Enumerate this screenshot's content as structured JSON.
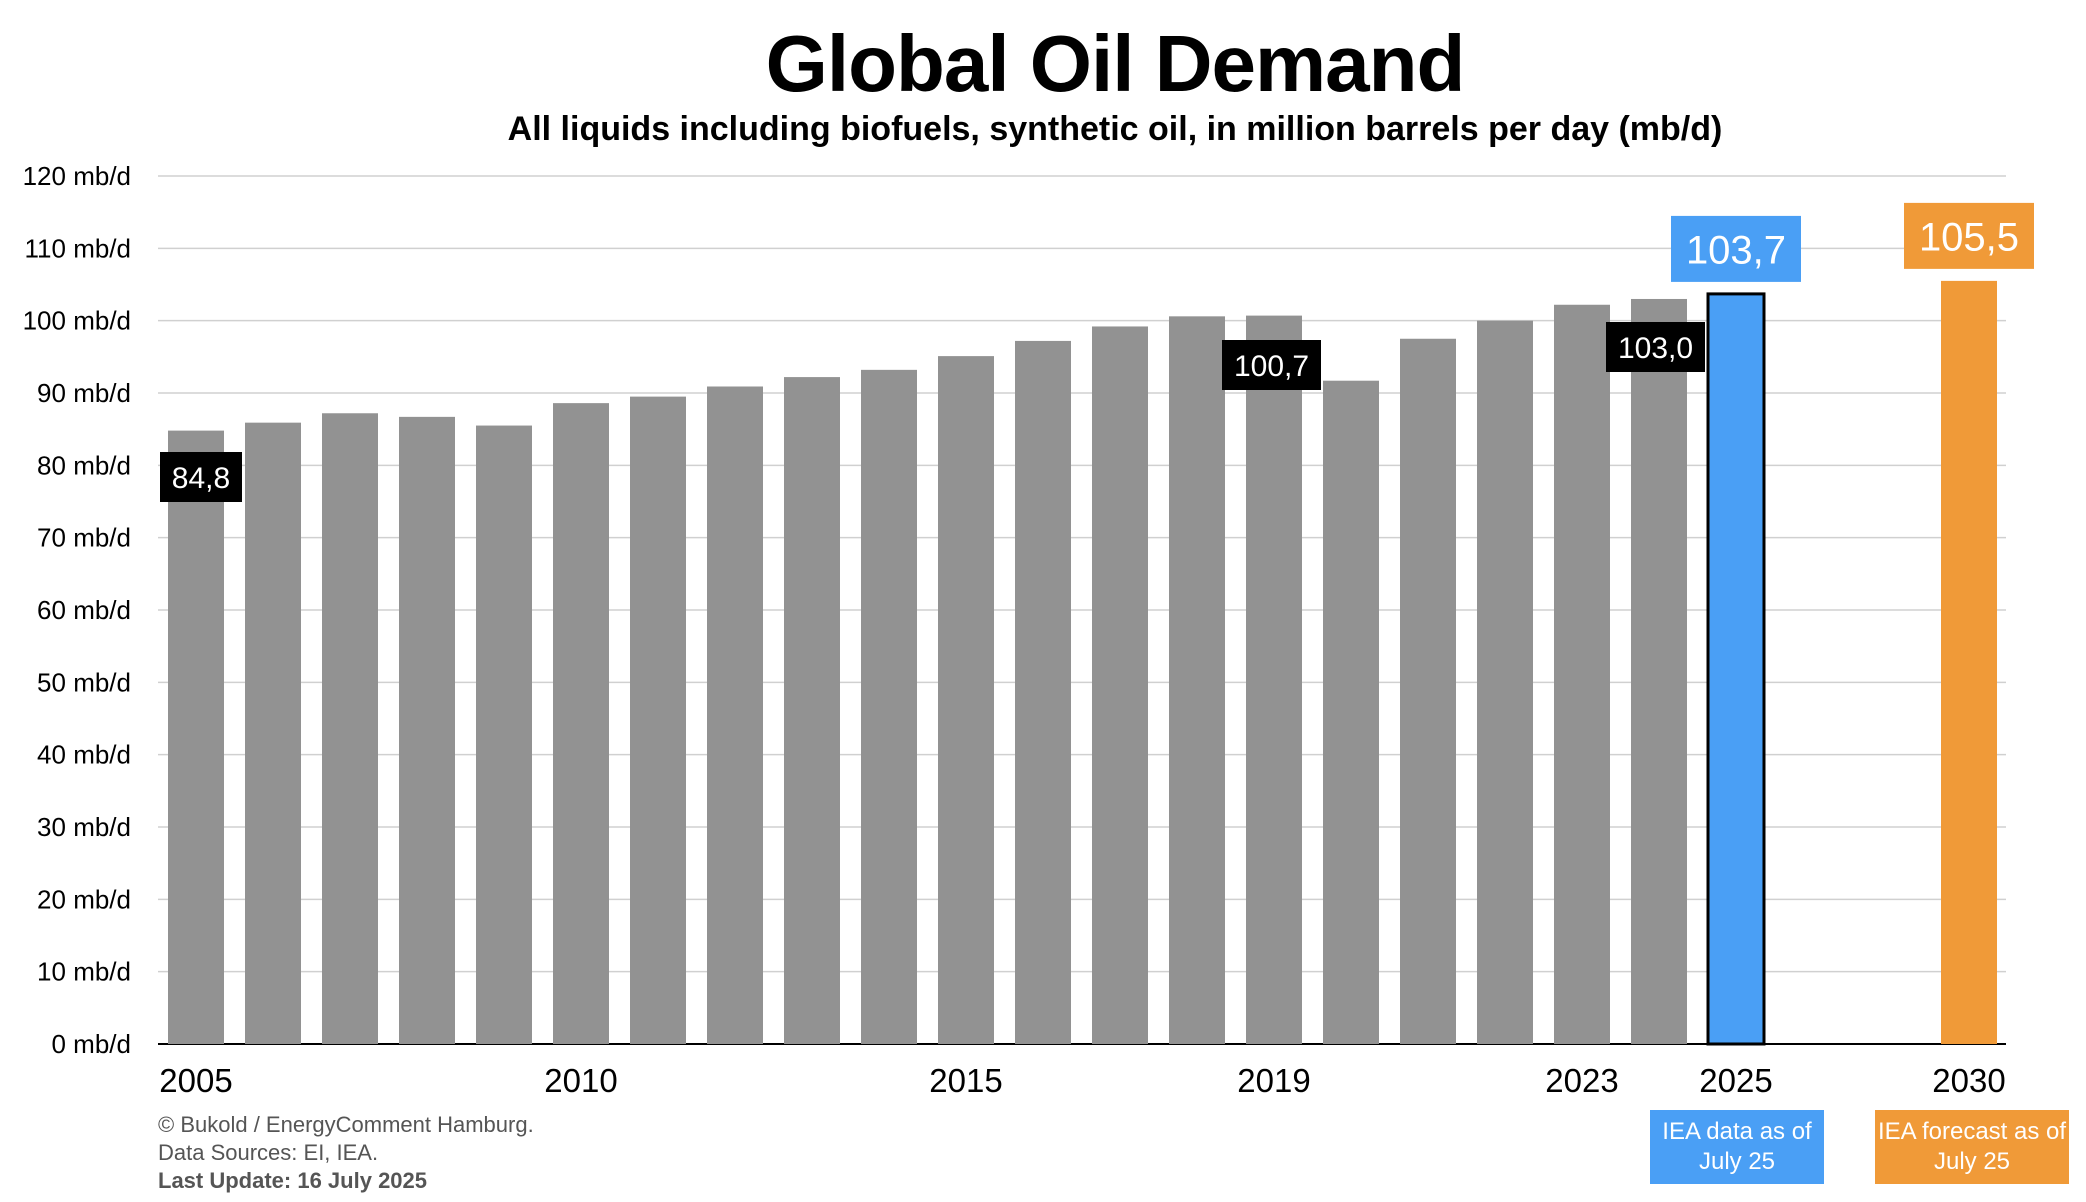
{
  "title": "Global Oil Demand",
  "subtitle": "All liquids including biofuels, synthetic oil, in million barrels per day (mb/d)",
  "footer": {
    "copyright": "© Bukold / EnergyComment Hamburg.",
    "sources": "Data Sources: EI, IEA.",
    "update": "Last Update: 16 July  2025"
  },
  "notes": {
    "iea_data": "IEA data as of July 25",
    "iea_forecast": "IEA forecast as of July 25"
  },
  "colors": {
    "historical": "#929292",
    "iea_data": "#4a9ff5",
    "iea_forecast": "#f09a38",
    "label_bg": "#000000",
    "grid": "#d0d0d0"
  },
  "chart_data": {
    "type": "bar",
    "ylim": [
      0,
      120
    ],
    "yticks": [
      "0 mb/d",
      "10 mb/d",
      "20 mb/d",
      "30 mb/d",
      "40 mb/d",
      "50 mb/d",
      "60 mb/d",
      "70 mb/d",
      "80 mb/d",
      "90 mb/d",
      "100 mb/d",
      "110 mb/d",
      "120 mb/d"
    ],
    "xtick_labels": [
      "2005",
      "2010",
      "2015",
      "2019",
      "2023",
      "2025",
      "2030"
    ],
    "categories": [
      "2005",
      "2006",
      "2007",
      "2008",
      "2009",
      "2010",
      "2011",
      "2012",
      "2013",
      "2014",
      "2015",
      "2016",
      "2017",
      "2018",
      "2019",
      "2020",
      "2021",
      "2022",
      "2023",
      "2024",
      "2025",
      "2030"
    ],
    "values": [
      84.8,
      85.9,
      87.2,
      86.7,
      85.5,
      88.6,
      89.5,
      90.9,
      92.2,
      93.2,
      95.1,
      97.2,
      99.2,
      100.6,
      100.7,
      91.7,
      97.5,
      100.0,
      102.2,
      103.0,
      103.7,
      105.5
    ],
    "series_kind": [
      "historical",
      "historical",
      "historical",
      "historical",
      "historical",
      "historical",
      "historical",
      "historical",
      "historical",
      "historical",
      "historical",
      "historical",
      "historical",
      "historical",
      "historical",
      "historical",
      "historical",
      "historical",
      "historical",
      "historical",
      "iea_data",
      "iea_forecast"
    ],
    "labels": [
      {
        "category": "2005",
        "text": "84,8"
      },
      {
        "category": "2019",
        "text": "100,7"
      },
      {
        "category": "2024",
        "text": "103,0"
      },
      {
        "category": "2025",
        "text": "103,7"
      },
      {
        "category": "2030",
        "text": "105,5"
      }
    ],
    "grid": true
  }
}
